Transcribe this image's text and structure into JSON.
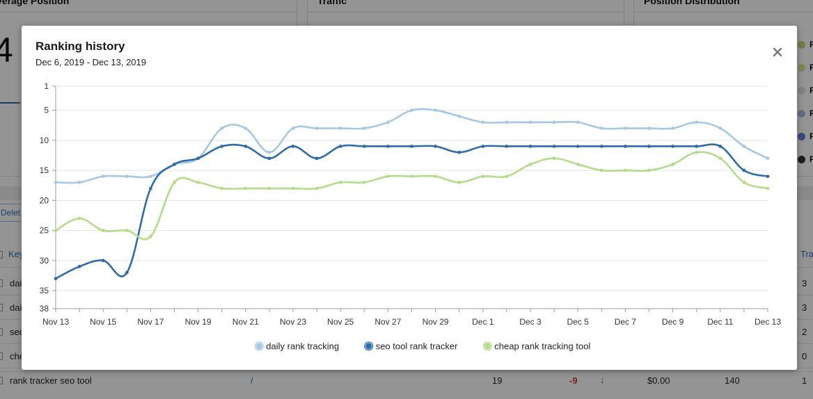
{
  "background": {
    "cards": [
      {
        "title": "verage Position"
      },
      {
        "title": "Traffic"
      },
      {
        "title": "Position Distribution"
      }
    ],
    "big_number": "4",
    "delete_label": "Delet",
    "keyword_header": "Key",
    "traffic_header": "Tra",
    "legend_letters": [
      "P",
      "P",
      "P",
      "P",
      "P",
      "P"
    ],
    "legend_colors": [
      "#c5d97a",
      "#dfe98f",
      "#dde3ea",
      "#a7bde6",
      "#5b86d0",
      "#333333"
    ],
    "rows": [
      {
        "keyword": "dai",
        "traffic": "3"
      },
      {
        "keyword": "dai",
        "traffic": "3"
      },
      {
        "keyword": "seo",
        "traffic": "2"
      },
      {
        "keyword": "che",
        "traffic": "0"
      }
    ],
    "last_row": {
      "keyword": "rank tracker seo tool",
      "url": "/",
      "position": "19",
      "change": "-9",
      "cpc": "$0.00",
      "volume": "140",
      "traffic": "1"
    }
  },
  "modal": {
    "title": "Ranking history",
    "subtitle": "Dec 6, 2019 - Dec 13, 2019",
    "close_icon": "close-icon"
  },
  "chart_data": {
    "type": "line",
    "x": [
      "Nov 13",
      "Nov 14",
      "Nov 15",
      "Nov 16",
      "Nov 17",
      "Nov 18",
      "Nov 19",
      "Nov 20",
      "Nov 21",
      "Nov 22",
      "Nov 23",
      "Nov 24",
      "Nov 25",
      "Nov 26",
      "Nov 27",
      "Nov 28",
      "Nov 29",
      "Nov 30",
      "Dec 1",
      "Dec 2",
      "Dec 3",
      "Dec 4",
      "Dec 5",
      "Dec 6",
      "Dec 7",
      "Dec 8",
      "Dec 9",
      "Dec 10",
      "Dec 11",
      "Dec 12",
      "Dec 13"
    ],
    "x_tick_labels": [
      "Nov 13",
      "Nov 15",
      "Nov 17",
      "Nov 19",
      "Nov 21",
      "Nov 23",
      "Nov 25",
      "Nov 27",
      "Nov 29",
      "Dec 1",
      "Dec 3",
      "Dec 5",
      "Dec 7",
      "Dec 9",
      "Dec 11",
      "Dec 13"
    ],
    "y_ticks": [
      1,
      5,
      10,
      15,
      20,
      25,
      30,
      35,
      38
    ],
    "ylim": [
      1,
      38
    ],
    "y_reversed": true,
    "grid": true,
    "legend_position": "bottom",
    "series": [
      {
        "name": "daily rank tracking",
        "color": "#a6c8e2",
        "values": [
          17,
          17,
          16,
          16,
          16,
          14,
          13,
          8,
          8,
          12,
          8,
          8,
          8,
          8,
          7,
          5,
          5,
          6,
          7,
          7,
          7,
          7,
          7,
          8,
          8,
          8,
          8,
          7,
          8,
          11,
          13
        ]
      },
      {
        "name": "seo tool rank tracker",
        "color": "#2f6ba8",
        "values": [
          33,
          31,
          30,
          32,
          18,
          14,
          13,
          11,
          11,
          13,
          11,
          13,
          11,
          11,
          11,
          11,
          11,
          12,
          11,
          11,
          11,
          11,
          11,
          11,
          11,
          11,
          11,
          11,
          11,
          15,
          16
        ]
      },
      {
        "name": "cheap rank tracking tool",
        "color": "#b3dc8a",
        "values": [
          25,
          23,
          25,
          25,
          26,
          17,
          17,
          18,
          18,
          18,
          18,
          18,
          17,
          17,
          16,
          16,
          16,
          17,
          16,
          16,
          14,
          13,
          14,
          15,
          15,
          15,
          14,
          12,
          13,
          17,
          18
        ]
      }
    ]
  }
}
